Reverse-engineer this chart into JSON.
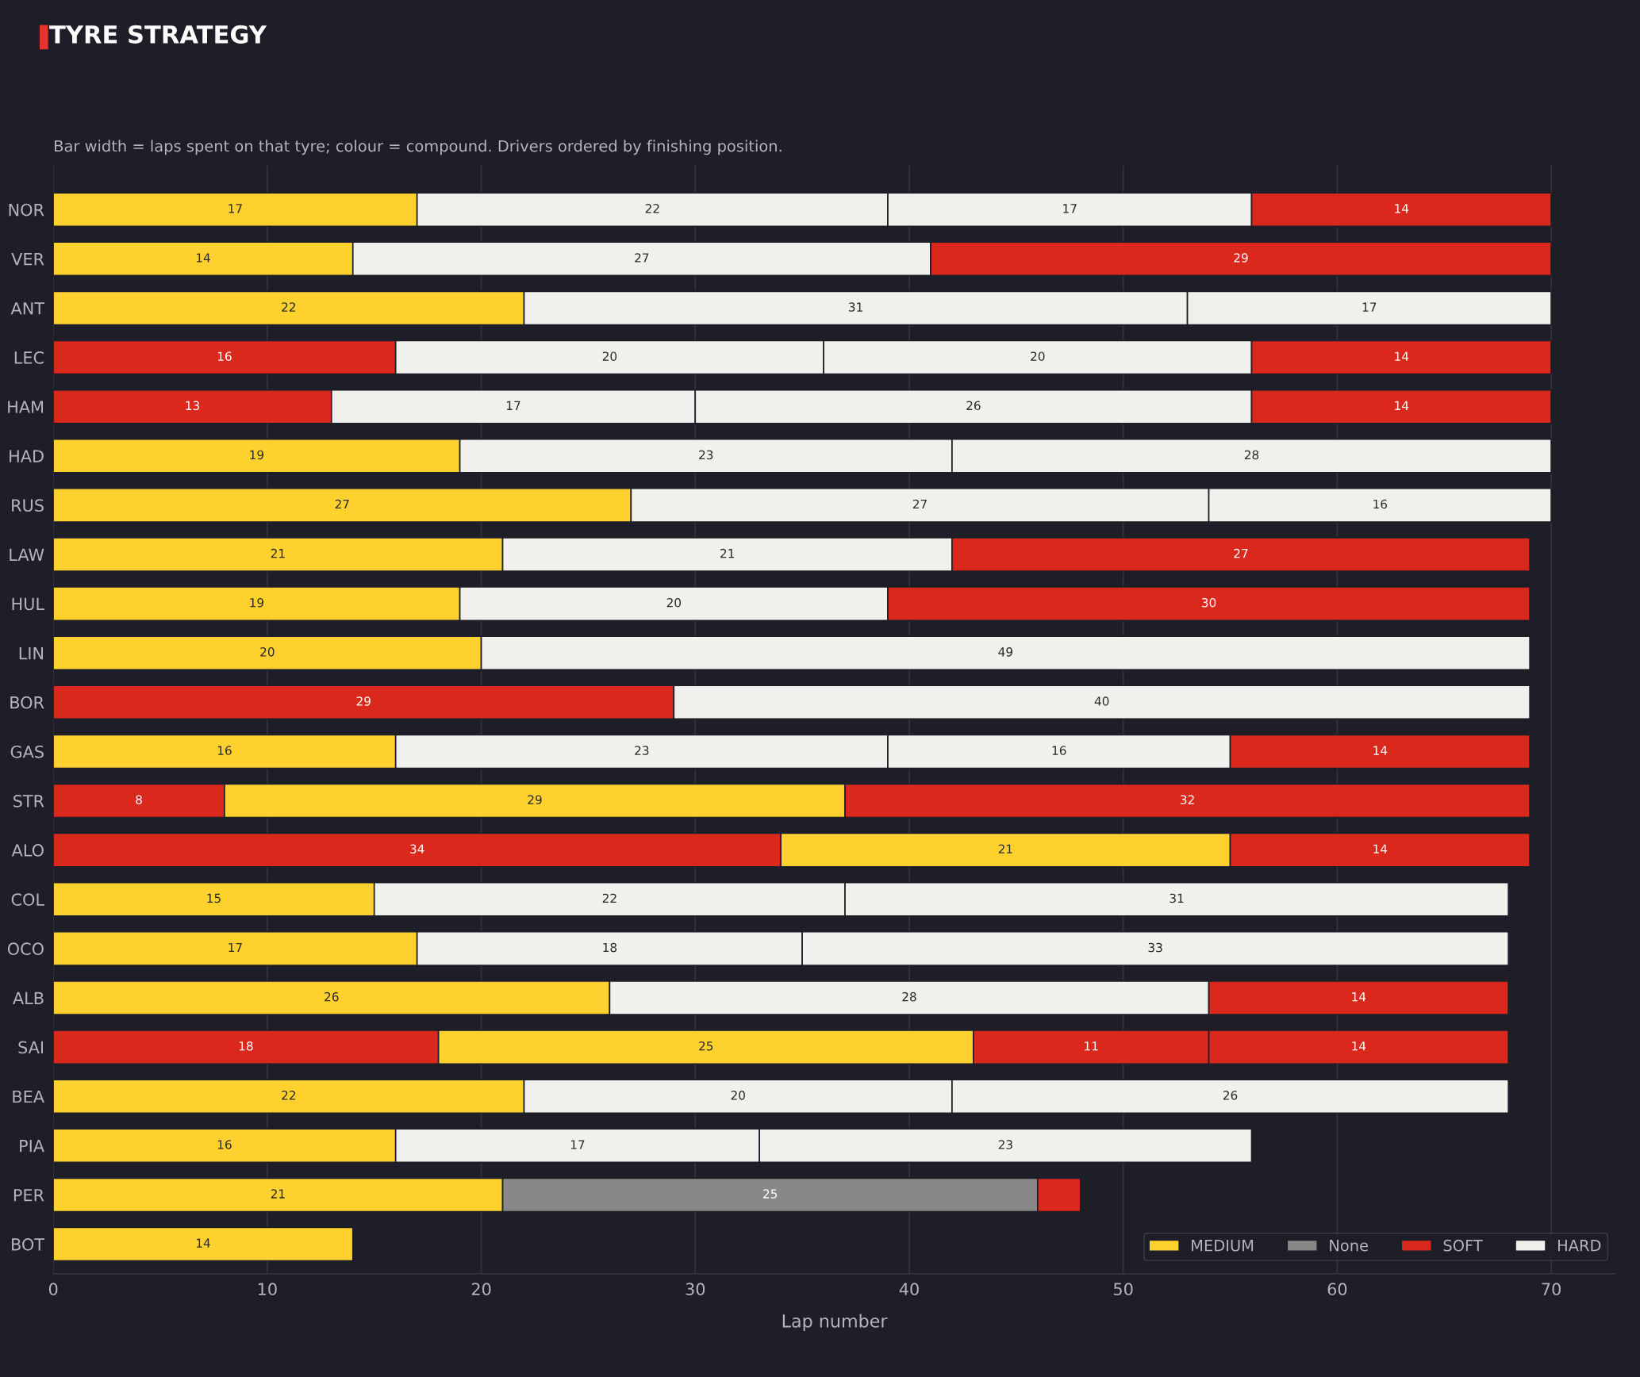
{
  "chart_data": {
    "type": "bar",
    "orientation": "horizontal",
    "stacked": true,
    "title": "TYRE STRATEGY",
    "subtitle": "Bar width = laps spent on that tyre; colour = compound. Drivers ordered by finishing position.",
    "xlabel": "Lap number",
    "categories": [
      "NOR",
      "VER",
      "ANT",
      "LEC",
      "HAM",
      "HAD",
      "RUS",
      "LAW",
      "HUL",
      "LIN",
      "BOR",
      "GAS",
      "STR",
      "ALO",
      "COL",
      "OCO",
      "ALB",
      "SAI",
      "BEA",
      "PIA",
      "PER",
      "BOT"
    ],
    "series": [
      {
        "values": [
          17,
          14,
          22,
          16,
          13,
          19,
          27,
          21,
          19,
          20,
          29,
          16,
          8,
          34,
          15,
          17,
          26,
          18,
          22,
          16,
          21,
          14
        ],
        "colors": [
          "#ffd12e",
          "#ffd12e",
          "#ffd12e",
          "#da291c",
          "#da291c",
          "#ffd12e",
          "#ffd12e",
          "#ffd12e",
          "#ffd12e",
          "#ffd12e",
          "#da291c",
          "#ffd12e",
          "#da291c",
          "#da291c",
          "#ffd12e",
          "#ffd12e",
          "#ffd12e",
          "#da291c",
          "#ffd12e",
          "#ffd12e",
          "#ffd12e",
          "#ffd12e"
        ],
        "value_labels": [
          "17",
          "14",
          "22",
          "16",
          "13",
          "19",
          "27",
          "21",
          "19",
          "20",
          "29",
          "16",
          "8",
          "34",
          "15",
          "17",
          "26",
          "18",
          "22",
          "16",
          "21",
          "14"
        ]
      },
      {
        "values": [
          22,
          27,
          31,
          20,
          17,
          23,
          27,
          21,
          20,
          49,
          40,
          23,
          29,
          21,
          22,
          18,
          28,
          25,
          20,
          17,
          25,
          null
        ],
        "colors": [
          "#f0f0ec",
          "#f0f0ec",
          "#f0f0ec",
          "#f0f0ec",
          "#f0f0ec",
          "#f0f0ec",
          "#f0f0ec",
          "#f0f0ec",
          "#f0f0ec",
          "#f0f0ec",
          "#f0f0ec",
          "#f0f0ec",
          "#ffd12e",
          "#ffd12e",
          "#f0f0ec",
          "#f0f0ec",
          "#f0f0ec",
          "#ffd12e",
          "#f0f0ec",
          "#f0f0ec",
          "#888888",
          null
        ],
        "value_labels": [
          "22",
          "27",
          "31",
          "20",
          "17",
          "23",
          "27",
          "21",
          "20",
          "49",
          "40",
          "23",
          "29",
          "21",
          "22",
          "18",
          "28",
          "25",
          "20",
          "17",
          "25",
          null
        ]
      },
      {
        "values": [
          17,
          29,
          17,
          20,
          26,
          28,
          16,
          27,
          30,
          null,
          null,
          16,
          32,
          14,
          31,
          33,
          14,
          11,
          26,
          23,
          2,
          null
        ],
        "colors": [
          "#f0f0ec",
          "#da291c",
          "#f0f0ec",
          "#f0f0ec",
          "#f0f0ec",
          "#f0f0ec",
          "#f0f0ec",
          "#da291c",
          "#da291c",
          null,
          null,
          "#f0f0ec",
          "#da291c",
          "#da291c",
          "#f0f0ec",
          "#f0f0ec",
          "#da291c",
          "#da291c",
          "#f0f0ec",
          "#f0f0ec",
          "#da291c",
          null
        ],
        "value_labels": [
          "17",
          "29",
          "17",
          "20",
          "26",
          "28",
          "16",
          "27",
          "30",
          null,
          null,
          "16",
          "32",
          "14",
          "31",
          "33",
          "14",
          "11",
          "26",
          "23",
          null,
          null
        ]
      },
      {
        "values": [
          14,
          null,
          null,
          14,
          14,
          null,
          null,
          null,
          null,
          null,
          null,
          14,
          null,
          null,
          null,
          null,
          null,
          14,
          null,
          null,
          null,
          null
        ],
        "colors": [
          "#da291c",
          null,
          null,
          "#da291c",
          "#da291c",
          null,
          null,
          null,
          null,
          null,
          null,
          "#da291c",
          null,
          null,
          null,
          null,
          null,
          "#da291c",
          null,
          null,
          null,
          null
        ],
        "value_labels": [
          "14",
          null,
          null,
          "14",
          "14",
          null,
          null,
          null,
          null,
          null,
          null,
          "14",
          null,
          null,
          null,
          null,
          null,
          "14",
          null,
          null,
          null,
          null
        ]
      },
      {
        "name": "MEDIUM",
        "color": "#ffd12e",
        "values": [
          null,
          null,
          null,
          null,
          null,
          null,
          null,
          null,
          null,
          null,
          null,
          null,
          null,
          null,
          null,
          null,
          null,
          null,
          null,
          null,
          null,
          null
        ]
      },
      {
        "name": "None",
        "color": "#888888",
        "values": [
          null,
          null,
          null,
          null,
          null,
          null,
          null,
          null,
          null,
          null,
          null,
          null,
          null,
          null,
          null,
          null,
          null,
          null,
          null,
          null,
          null,
          null
        ]
      },
      {
        "name": "SOFT",
        "color": "#da291c",
        "values": [
          null,
          null,
          null,
          null,
          null,
          null,
          null,
          null,
          null,
          null,
          null,
          null,
          null,
          null,
          null,
          null,
          null,
          null,
          null,
          null,
          null,
          null
        ]
      },
      {
        "name": "HARD",
        "color": "#f0f0ec",
        "values": [
          null,
          null,
          null,
          null,
          null,
          null,
          null,
          null,
          null,
          null,
          null,
          null,
          null,
          null,
          null,
          null,
          null,
          null,
          null,
          null,
          null,
          null
        ]
      }
    ],
    "xlim": [
      0,
      73
    ],
    "xticks": [
      0,
      10,
      20,
      30,
      40,
      50,
      60,
      70
    ],
    "grid": "x",
    "legend": "bottom right"
  }
}
